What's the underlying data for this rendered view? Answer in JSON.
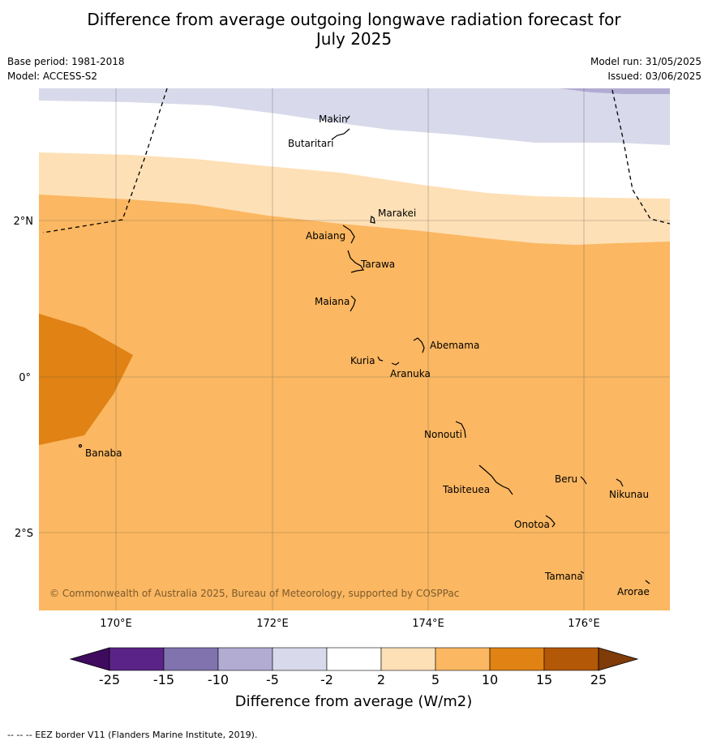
{
  "title_line1": "Difference from average outgoing longwave radiation forecast for",
  "title_line2": "July 2025",
  "base_period": "Base period: 1981-2018",
  "model": "Model: ACCESS-S2",
  "model_run": "Model run: 31/05/2025",
  "issued": "Issued: 03/06/2025",
  "credit": "© Commonwealth of Australia 2025, Bureau of Meteorology, supported by COSPPac",
  "eez_note": "--  --  -- EEZ border V11 (Flanders Marine Institute, 2019).",
  "axes": {
    "lon_labels": [
      "170°E",
      "172°E",
      "174°E",
      "176°E"
    ],
    "lat_labels": [
      "2°N",
      "0°",
      "2°S"
    ]
  },
  "places": {
    "makin": "Makin",
    "butaritari": "Butaritari",
    "marakei": "Marakei",
    "abaiang": "Abaiang",
    "tarawa": "Tarawa",
    "maiana": "Maiana",
    "abemama": "Abemama",
    "kuria": "Kuria",
    "aranuka": "Aranuka",
    "banaba": "Banaba",
    "nonouti": "Nonouti",
    "beru": "Beru",
    "nikunau": "Nikunau",
    "tabiteuea": "Tabiteuea",
    "onotoa": "Onotoa",
    "tamana": "Tamana",
    "arorae": "Arorae"
  },
  "colorbar": {
    "title": "Difference from average (W/m2)",
    "ticks": [
      "-25",
      "-15",
      "-10",
      "-5",
      "-2",
      "2",
      "5",
      "10",
      "15",
      "25"
    ],
    "colors": [
      "#3f0b5e",
      "#5a2387",
      "#8073ae",
      "#b2abd2",
      "#d8d9ea",
      "#ffffff",
      "#fee0b6",
      "#fbb761",
      "#e08214",
      "#b35806",
      "#7f3b08"
    ]
  },
  "map_colors": {
    "band_m5_m2": "#d8d9ea",
    "band_m10_m5": "#b2abd2",
    "band_m2_2": "#ffffff",
    "band_2_5": "#fee0b6",
    "band_5_10": "#fbb761",
    "band_10_15": "#e08214"
  }
}
